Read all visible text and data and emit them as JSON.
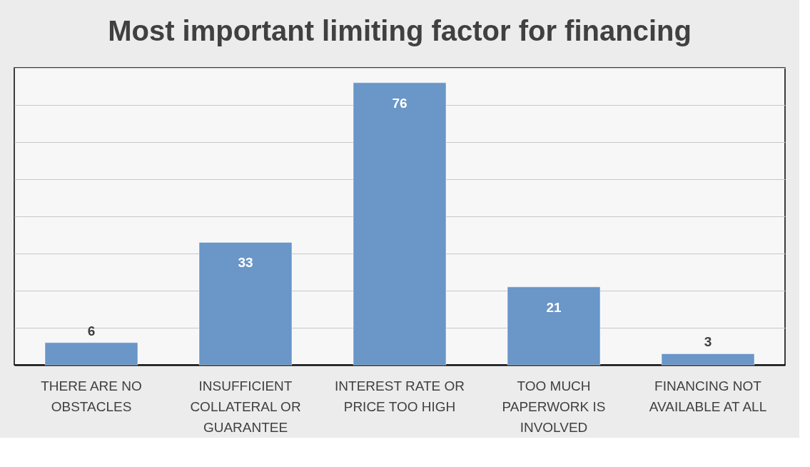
{
  "chart_data": {
    "type": "bar",
    "title": "Most important limiting factor for financing",
    "categories": [
      "THERE ARE NO OBSTACLES",
      "INSUFFICIENT COLLATERAL OR GUARANTEE",
      "INTEREST RATE OR PRICE TOO HIGH",
      "TOO MUCH PAPERWORK IS INVOLVED",
      "FINANCING NOT AVAILABLE AT ALL"
    ],
    "values": [
      6,
      33,
      76,
      21,
      3
    ],
    "color": "#6a96c8",
    "ylim": [
      0,
      80
    ],
    "yticks": [
      {
        "value": 0,
        "label": null
      },
      {
        "value": 10,
        "label": null
      },
      {
        "value": 20,
        "label": null
      },
      {
        "value": 30,
        "label": null
      },
      {
        "value": 40,
        "label": null
      },
      {
        "value": 50,
        "label": null
      },
      {
        "value": 60,
        "label": null
      },
      {
        "value": 70,
        "label": null
      },
      {
        "value": 80,
        "label": null
      }
    ],
    "grid": "y",
    "data_labels": true,
    "tick_labels": "x"
  }
}
